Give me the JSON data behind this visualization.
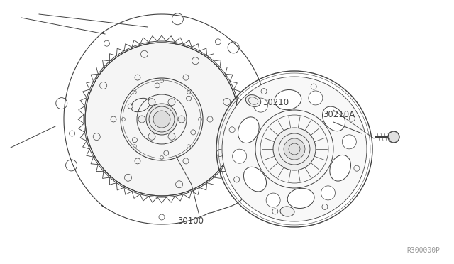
{
  "bg_color": "#ffffff",
  "line_color": "#404040",
  "label_color": "#404040",
  "watermark": "R300000P",
  "watermark_color": "#999999",
  "figsize": [
    6.4,
    3.72
  ],
  "dpi": 100,
  "label_30100": "30100",
  "label_30210": "30210",
  "label_30210A": "30210A",
  "label_fontsize": 8.5,
  "watermark_fontsize": 7
}
